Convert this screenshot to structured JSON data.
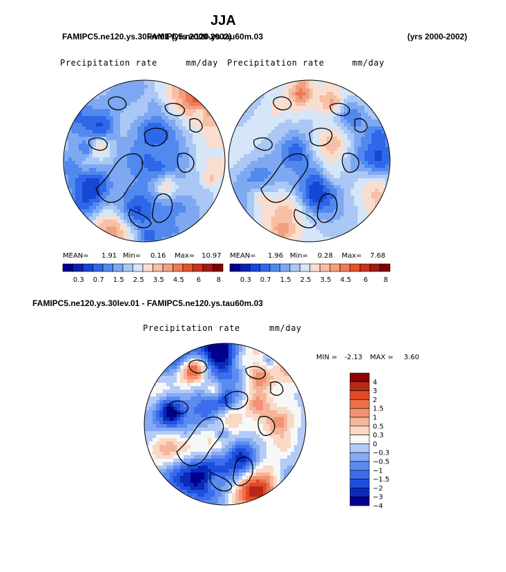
{
  "page": {
    "title": "JJA",
    "case_header": "FAMIPC5.ne120.ys.30lev.01 (yrs 2000-2002)",
    "case_header_overlap": "FAMIPC5.ne120.ys.tau60m.03",
    "years_label": "(yrs 2000-2002)",
    "diff_header": "FAMIPC5.ne120.ys.30lev.01 - FAMIPC5.ne120.ys.tau60m.03"
  },
  "colors": {
    "sequential": [
      "#00008f",
      "#0a21b0",
      "#1646d3",
      "#2e67e8",
      "#5289ef",
      "#7ea9f2",
      "#aac7f5",
      "#d4e6f7",
      "#f9ded0",
      "#f6bfa6",
      "#f29f80",
      "#ef7a57",
      "#e6522e",
      "#c9321d",
      "#a21a13",
      "#800000"
    ],
    "diverging": [
      "#00008f",
      "#0b2ab8",
      "#1d4fdc",
      "#3c6ded",
      "#5c8bf0",
      "#86aaf3",
      "#b3cbf6",
      "#f7f7f7",
      "#f9d9c5",
      "#f5b49b",
      "#f29273",
      "#ee7049",
      "#e04a25",
      "#b82817",
      "#8b0000"
    ]
  },
  "chart_data": [
    {
      "type": "heatmap",
      "projection": "north-polar-stereographic",
      "panel": "upper-left",
      "title": "Precipitation rate",
      "units": "mm/day",
      "stats": {
        "mean_label": "MEAN=",
        "mean": "1.91",
        "min_label": "Min=",
        "min": "0.16",
        "max_label": "Max=",
        "max": "10.97"
      },
      "colorbar": {
        "orientation": "horizontal",
        "ticks": [
          "0.3",
          "0.7",
          "1.5",
          "2.5",
          "3.5",
          "4.5",
          "6",
          "8"
        ]
      }
    },
    {
      "type": "heatmap",
      "projection": "north-polar-stereographic",
      "panel": "upper-right",
      "title": "Precipitation rate",
      "units": "mm/day",
      "stats": {
        "mean_label": "MEAN=",
        "mean": "1.96",
        "min_label": "Min=",
        "min": "0.28",
        "max_label": "Max=",
        "max": "7.68"
      },
      "colorbar": {
        "orientation": "horizontal",
        "ticks": [
          "0.3",
          "0.7",
          "1.5",
          "2.5",
          "3.5",
          "4.5",
          "6",
          "8"
        ]
      }
    },
    {
      "type": "heatmap",
      "projection": "north-polar-stereographic",
      "panel": "bottom-difference",
      "title": "Precipitation rate",
      "units": "mm/day",
      "stats": {
        "min_label": "MIN =",
        "min": "-2.13",
        "max_label": "MAX =",
        "max": "3.60"
      },
      "colorbar": {
        "orientation": "vertical",
        "ticks": [
          "4",
          "3",
          "2",
          "1.5",
          "1",
          "0.5",
          "0.3",
          "0",
          "−0.3",
          "−0.5",
          "−1",
          "−1.5",
          "−2",
          "−3",
          "−4"
        ]
      }
    }
  ]
}
